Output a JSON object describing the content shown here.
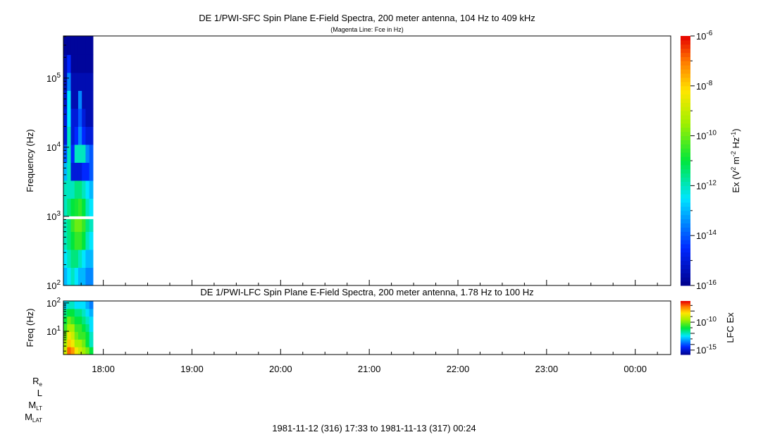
{
  "colors": {
    "background": "#ffffff",
    "axis": "#000000",
    "gap": "#ffffff"
  },
  "chart_data": [
    {
      "type": "heatmap",
      "title": "DE 1/PWI-SFC  Spin Plane E-Field Spectra, 200 meter antenna, 104 Hz to 409 kHz",
      "subtitle": "(Magenta Line: Fce in Hz)",
      "ylabel": "Frequency (Hz)",
      "yscale": "log",
      "ylim_log10": [
        2.0,
        5.61
      ],
      "ytick_labels": [
        {
          "base": "10",
          "exp": "2"
        },
        {
          "base": "10",
          "exp": "3"
        },
        {
          "base": "10",
          "exp": "4"
        },
        {
          "base": "10",
          "exp": "5"
        }
      ],
      "colorbar": {
        "label": "Ex (V",
        "label_sup1": "2",
        "label_mid": " m",
        "label_sup2": "-2",
        "label_mid2": " Hz",
        "label_sup3": "-1",
        "label_end": ")",
        "scale": "log",
        "range_log10": [
          -16,
          -6
        ],
        "tick_labels": [
          {
            "base": "10",
            "exp": "-6"
          },
          {
            "base": "10",
            "exp": "-8"
          },
          {
            "base": "10",
            "exp": "-10"
          },
          {
            "base": "10",
            "exp": "-12"
          },
          {
            "base": "10",
            "exp": "-14"
          },
          {
            "base": "10",
            "exp": "-16"
          }
        ],
        "colormap": "rainbow"
      },
      "data_gap_log10_hz": [
        2.96,
        3.0
      ],
      "time_bins": [
        "17:33",
        "17:35.5",
        "17:38",
        "17:40.5",
        "17:43",
        "17:45.5",
        "17:48",
        "17:50.5"
      ],
      "time_end": "17:53",
      "freq_bins_log10": [
        2.0,
        2.26,
        2.52,
        2.78,
        3.0,
        3.26,
        3.52,
        3.78,
        4.04,
        4.3,
        4.56,
        4.82,
        5.08,
        5.34,
        5.61
      ],
      "values_log10": [
        [
          -13,
          -12.5,
          -12,
          -12.5,
          -13,
          -13,
          -13.5,
          -13.5
        ],
        [
          -12.5,
          -12,
          -11.5,
          -11.5,
          -12,
          -12.5,
          -13,
          -13
        ],
        [
          -12,
          -11.5,
          -11,
          -10.5,
          -10.5,
          -11,
          -12,
          -12.5
        ],
        [
          -12,
          -11.5,
          -10.5,
          -10,
          -10,
          -10.5,
          -11.5,
          -12
        ],
        [
          -12,
          -11.5,
          -11,
          -10.8,
          -10.5,
          -11,
          -12,
          -12.5
        ],
        [
          -12,
          -12,
          -12,
          -11.5,
          -11.5,
          -12,
          -12.5,
          -13
        ],
        [
          -13,
          -12,
          -15,
          -15,
          -15,
          -14.5,
          -14.5,
          -14
        ],
        [
          -14,
          -12,
          -14.5,
          -12,
          -12,
          -12,
          -13.5,
          -14
        ],
        [
          -15,
          -12,
          -15,
          -14.5,
          -13.5,
          -14.5,
          -15,
          -15
        ],
        [
          -15,
          -12.5,
          -15,
          -15,
          -14,
          -15,
          -15.5,
          -15.5
        ],
        [
          -15.2,
          -12.5,
          -15.5,
          -15.5,
          -13.5,
          -15.5,
          -15.5,
          -15.5
        ],
        [
          -15.5,
          -13.5,
          -15.5,
          -15.5,
          -15.5,
          -15.5,
          -15.5,
          -15.5
        ],
        [
          -15.5,
          -14.5,
          -15.8,
          -15.8,
          -15.8,
          -15.8,
          -15.8,
          -15.8
        ],
        [
          -15.8,
          -15.8,
          -15.8,
          -15.8,
          -15.8,
          -15.8,
          -15.8,
          -15.8
        ]
      ]
    },
    {
      "type": "heatmap",
      "title": "DE 1/PWI-LFC  Spin Plane E-Field Spectra, 200 meter antenna, 1.78 Hz to 100 Hz",
      "ylabel": "Freq (Hz)",
      "yscale": "log",
      "ylim_log10": [
        0.18,
        2.07
      ],
      "ytick_labels": [
        {
          "base": "10",
          "exp": "1"
        },
        {
          "base": "10",
          "exp": "2"
        }
      ],
      "colorbar": {
        "label": "LFC Ex",
        "scale": "log",
        "range_log10": [
          -15.8,
          -6.2
        ],
        "tick_labels": [
          {
            "base": "10",
            "exp": "-10"
          },
          {
            "base": "10",
            "exp": "-15"
          }
        ],
        "colormap": "rainbow"
      },
      "time_bins": [
        "17:33",
        "17:35.5",
        "17:38",
        "17:40.5",
        "17:43",
        "17:45.5",
        "17:48",
        "17:50.5"
      ],
      "time_end": "17:53",
      "freq_bins_log10": [
        0.18,
        0.45,
        0.72,
        0.99,
        1.26,
        1.53,
        1.8,
        2.07
      ],
      "values_log10": [
        [
          -9,
          -7,
          -7.5,
          -8.5,
          -9,
          -9.5,
          -10,
          -11
        ],
        [
          -9.5,
          -8,
          -8.5,
          -9.5,
          -9.5,
          -10,
          -11,
          -12
        ],
        [
          -10,
          -8.5,
          -9,
          -10,
          -10.5,
          -10.5,
          -11,
          -12
        ],
        [
          -10.5,
          -9.5,
          -9.5,
          -10.5,
          -10.5,
          -11,
          -11.5,
          -12.5
        ],
        [
          -11,
          -10,
          -10.5,
          -11,
          -11,
          -11.5,
          -12,
          -12.5
        ],
        [
          -11.5,
          -11,
          -11,
          -11.5,
          -11.5,
          -12,
          -12.5,
          -13
        ],
        [
          -12.5,
          -12,
          -12,
          -12.5,
          -12.5,
          -12.5,
          -13,
          -13.5
        ]
      ]
    }
  ],
  "time_axis": {
    "ticks": [
      "18:00",
      "19:00",
      "20:00",
      "21:00",
      "22:00",
      "23:00",
      "00:00"
    ],
    "start": "17:33",
    "end": "00:24"
  },
  "ephemeris_labels": [
    {
      "base": "R",
      "sub": "e"
    },
    {
      "base": "L",
      "sub": ""
    },
    {
      "base": "M",
      "sub": "LT"
    },
    {
      "base": "M",
      "sub": "LAT"
    }
  ],
  "footer": "1981-11-12 (316) 17:33 to 1981-11-13 (317) 00:24"
}
